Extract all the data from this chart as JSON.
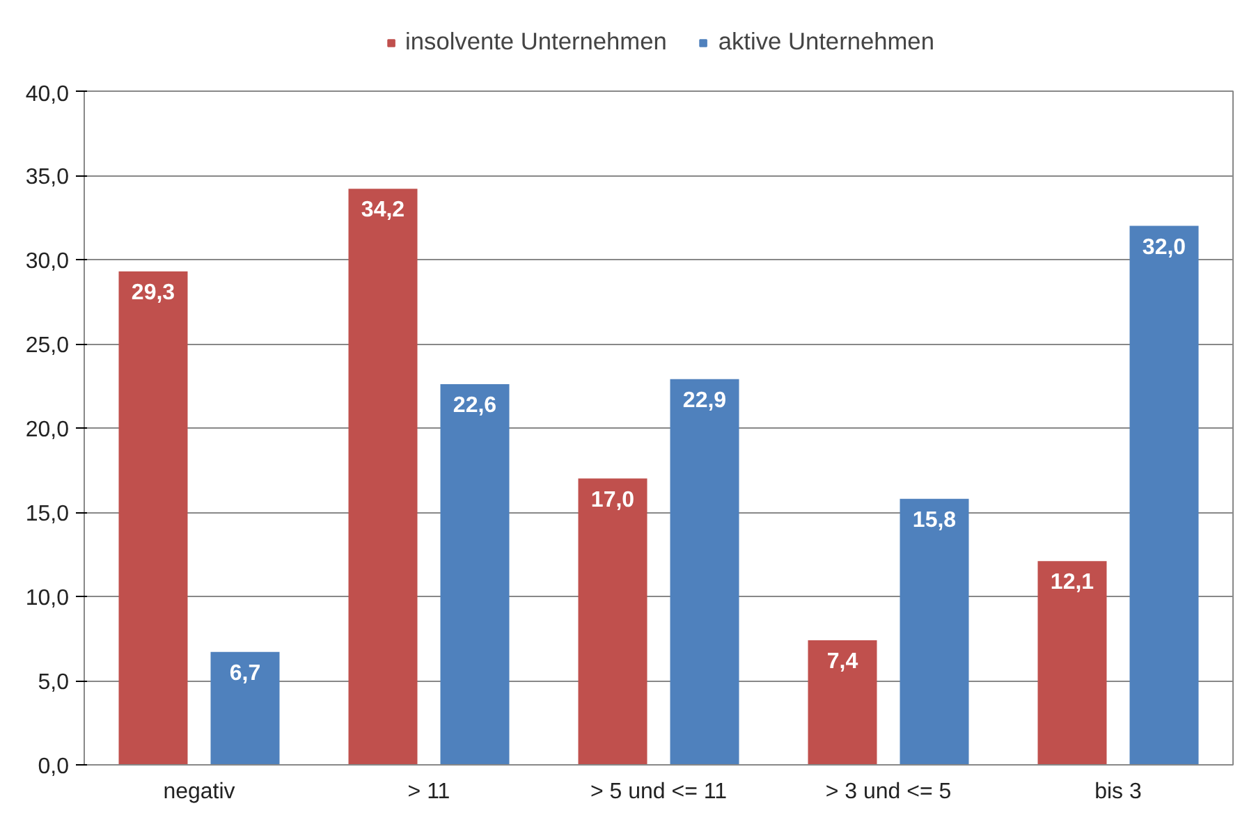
{
  "chart_data": {
    "type": "bar",
    "categories": [
      "negativ",
      "> 11",
      "> 5 und <= 11",
      "> 3 und <= 5",
      "bis 3"
    ],
    "series": [
      {
        "name": "insolvente Unternehmen",
        "color": "#c0504d",
        "values": [
          29.3,
          34.2,
          17.0,
          7.4,
          12.1
        ],
        "value_labels": [
          "29,3",
          "34,2",
          "17,0",
          "7,4",
          "12,1"
        ]
      },
      {
        "name": "aktive Unternehmen",
        "color": "#4f81bd",
        "values": [
          6.7,
          22.6,
          22.9,
          15.8,
          32.0
        ],
        "value_labels": [
          "6,7",
          "22,6",
          "22,9",
          "15,8",
          "32,0"
        ]
      }
    ],
    "ylim": [
      0,
      40
    ],
    "yticks": [
      {
        "value": 0,
        "label": "0,0"
      },
      {
        "value": 5,
        "label": "5,0"
      },
      {
        "value": 10,
        "label": "10,0"
      },
      {
        "value": 15,
        "label": "15,0"
      },
      {
        "value": 20,
        "label": "20,0"
      },
      {
        "value": 25,
        "label": "25,0"
      },
      {
        "value": 30,
        "label": "30,0"
      },
      {
        "value": 35,
        "label": "35,0"
      },
      {
        "value": 40,
        "label": "40,0"
      }
    ],
    "grid": "y",
    "legend": "top"
  }
}
